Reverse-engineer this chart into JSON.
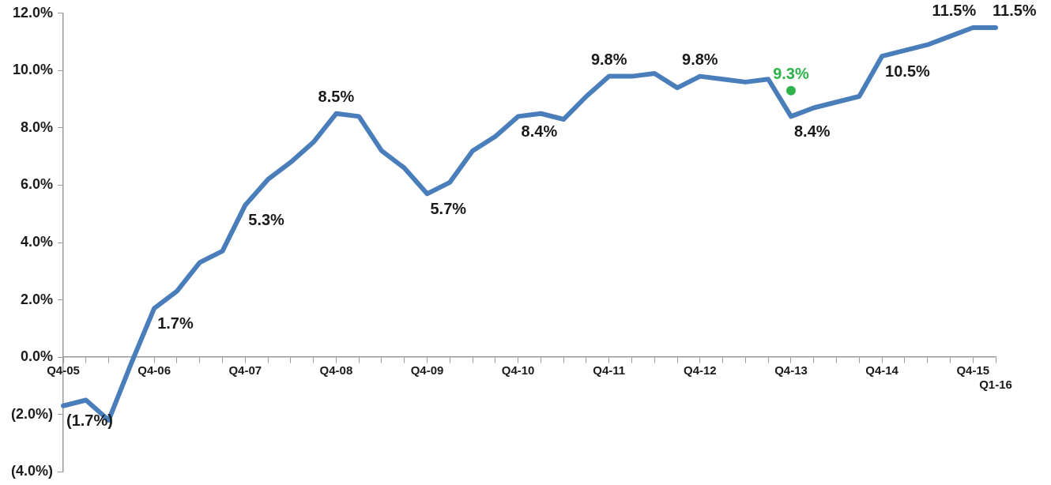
{
  "chart_data": {
    "type": "line",
    "categories": [
      "Q4-05",
      null,
      null,
      null,
      "Q4-06",
      null,
      null,
      null,
      "Q4-07",
      null,
      null,
      null,
      "Q4-08",
      null,
      null,
      null,
      "Q4-09",
      null,
      null,
      null,
      "Q4-10",
      null,
      null,
      null,
      "Q4-11",
      null,
      null,
      null,
      "Q4-12",
      null,
      null,
      null,
      "Q4-13",
      null,
      null,
      null,
      "Q4-14",
      null,
      null,
      null,
      "Q4-15",
      "Q1-16"
    ],
    "series": [
      {
        "type": "line",
        "color": "#4a7ebb",
        "marker": "none",
        "values": [
          -1.7,
          -1.5,
          -2.2,
          -0.2,
          1.7,
          2.3,
          3.3,
          3.7,
          5.3,
          6.2,
          6.8,
          7.5,
          8.5,
          8.4,
          7.2,
          6.6,
          5.7,
          6.1,
          7.2,
          7.7,
          8.4,
          8.5,
          8.3,
          9.1,
          9.8,
          9.8,
          9.9,
          9.4,
          9.8,
          9.7,
          9.6,
          9.7,
          8.4,
          8.7,
          8.9,
          9.1,
          10.5,
          10.7,
          10.9,
          11.2,
          11.5,
          11.5
        ],
        "value_labels": [
          "(1.7%)",
          null,
          null,
          null,
          "1.7%",
          null,
          null,
          null,
          "5.3%",
          null,
          null,
          null,
          "8.5%",
          null,
          null,
          null,
          "5.7%",
          null,
          null,
          null,
          "8.4%",
          null,
          null,
          null,
          "9.8%",
          null,
          null,
          null,
          "9.8%",
          null,
          null,
          null,
          "8.4%",
          null,
          null,
          null,
          "10.5%",
          null,
          null,
          null,
          "11.5%",
          "11.5%"
        ]
      },
      {
        "type": "scatter",
        "color": "#2db34a",
        "marker": "circle",
        "x": [
          "Q4-13"
        ],
        "values": [
          9.3
        ],
        "value_labels": [
          "9.3%"
        ]
      }
    ],
    "ylim": [
      -4,
      12
    ],
    "yticks": [
      {
        "value": -4,
        "label": "(4.0%)"
      },
      {
        "value": -2,
        "label": "(2.0%)"
      },
      {
        "value": 0,
        "label": "0.0%"
      },
      {
        "value": 2,
        "label": "2.0%"
      },
      {
        "value": 4,
        "label": "4.0%"
      },
      {
        "value": 6,
        "label": "6.0%"
      },
      {
        "value": 8,
        "label": "8.0%"
      },
      {
        "value": 10,
        "label": "10.0%"
      },
      {
        "value": 12,
        "label": "12.0%"
      }
    ],
    "grid": false,
    "legend": false
  }
}
